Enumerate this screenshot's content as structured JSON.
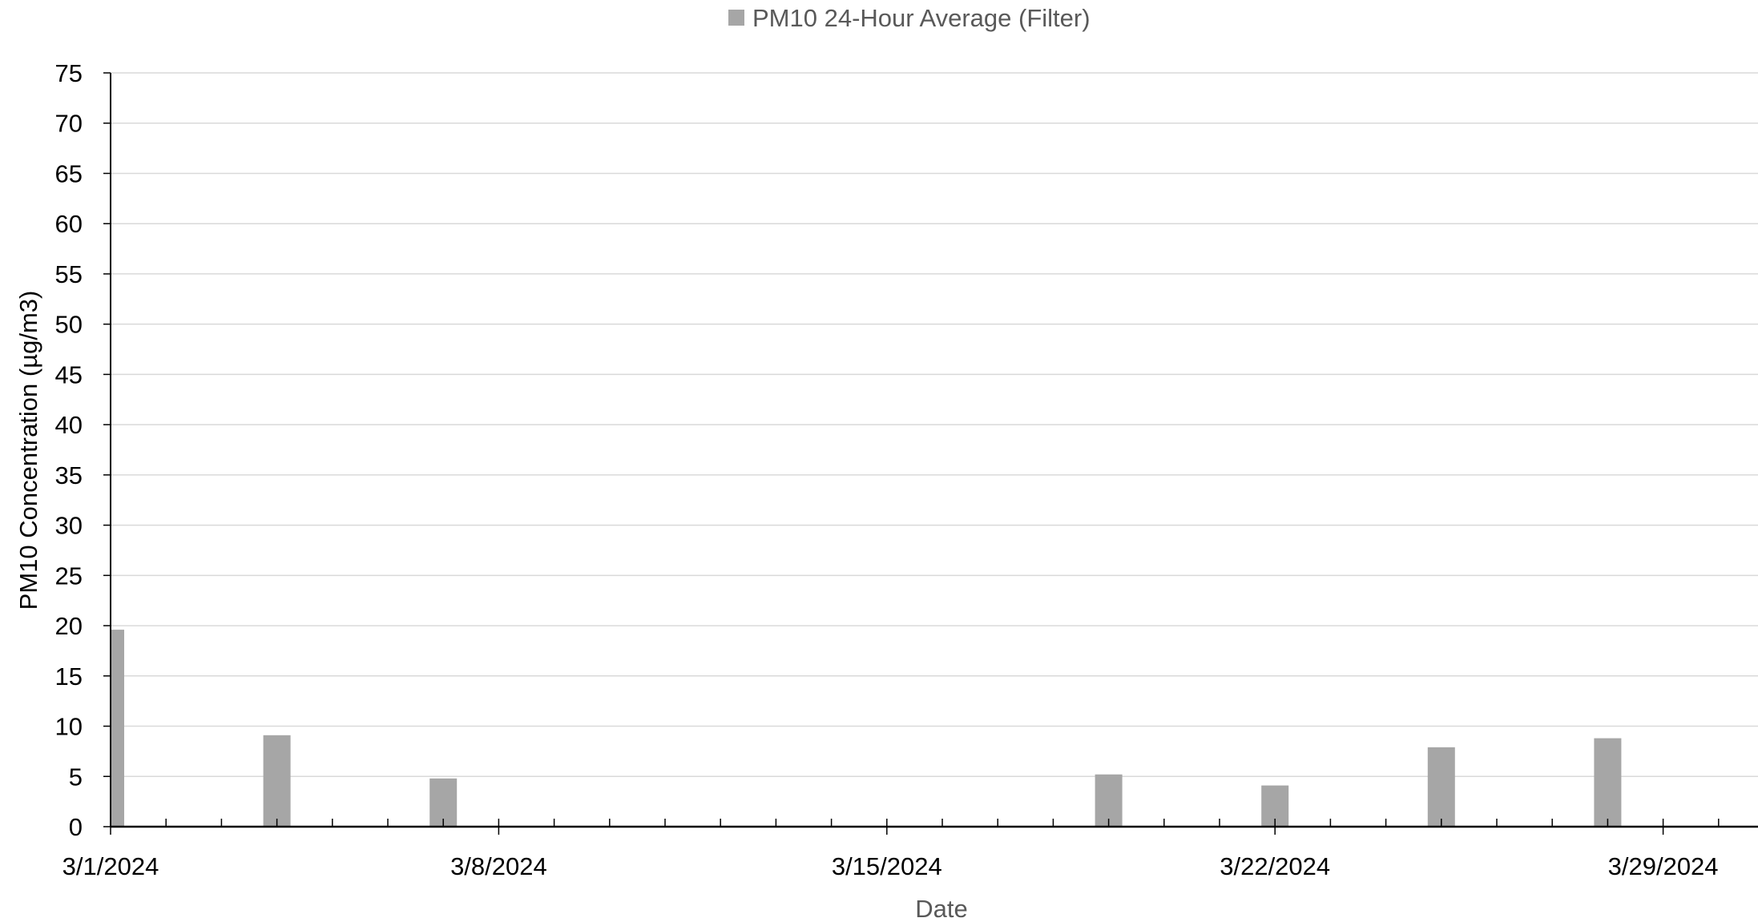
{
  "chart_data": {
    "type": "bar",
    "xlabel": "Date",
    "ylabel": "PM10 Concentration (µg/m3)",
    "ylim": [
      0,
      75
    ],
    "ystep": 5,
    "xlim": [
      "2024-03-01",
      "2024-03-31"
    ],
    "x_tick_labels": [
      "3/1/2024",
      "3/8/2024",
      "3/15/2024",
      "3/22/2024",
      "3/29/2024"
    ],
    "x_tick_dates": [
      "2024-03-01",
      "2024-03-08",
      "2024-03-15",
      "2024-03-22",
      "2024-03-29"
    ],
    "grid": true,
    "legend_position": "top-center",
    "series": [
      {
        "name": "PM10 24-Hour Average (Filter)",
        "color": "#a6a6a6",
        "x": [
          "2024-03-01",
          "2024-03-04",
          "2024-03-07",
          "2024-03-19",
          "2024-03-22",
          "2024-03-25",
          "2024-03-28"
        ],
        "values": [
          19.6,
          9.1,
          4.8,
          5.2,
          4.1,
          7.9,
          8.8
        ]
      }
    ]
  }
}
